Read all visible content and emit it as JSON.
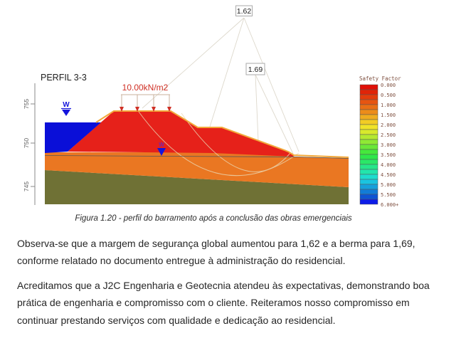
{
  "figure": {
    "profile_label": "PERFIL 3-3",
    "surcharge_label": "10.00kN/m2",
    "water_symbol": "W",
    "safety_factors": {
      "global": "1.62",
      "berm": "1.69"
    },
    "y_axis_ticks": [
      "755",
      "750",
      "745"
    ],
    "layer_colors": {
      "water": "#0a0fd8",
      "embankment": "#e6211a",
      "fill_layer": "#ea7722",
      "foundation": "#6f7135",
      "surface_outline": "#f2a93b"
    },
    "legend": {
      "title": "Safety Factor",
      "ticks": [
        "0.000",
        "0.500",
        "1.000",
        "1.500",
        "2.000",
        "2.500",
        "3.000",
        "3.500",
        "4.000",
        "4.500",
        "5.000",
        "5.500",
        "6.000+"
      ],
      "cell_colors": [
        "#e01008",
        "#e02408",
        "#e33c0c",
        "#e65511",
        "#e96f15",
        "#ec8c1a",
        "#efac1f",
        "#f2cc24",
        "#f0e428",
        "#d8e92c",
        "#b4e930",
        "#8fe934",
        "#6ae838",
        "#45e83c",
        "#2ee74a",
        "#2ae768",
        "#26e68a",
        "#22e5ac",
        "#1edcce",
        "#1ac4e0",
        "#16a0dc",
        "#127cd8",
        "#0e54d4",
        "#0c1ce8"
      ]
    }
  },
  "caption": "Figura 1.20 - perfil do barramento após a conclusão das obras emergenciais",
  "paragraphs": [
    "Observa-se que a margem de segurança global aumentou para 1,62 e a berma para 1,69, conforme relatado no documento entregue à administração do residencial.",
    "Acreditamos que a J2C Engenharia e Geotecnia atendeu às expectativas, demonstrando boa prática de engenharia e compromisso com o cliente. Reiteramos nosso compromisso em continuar prestando serviços com qualidade e dedicação ao residencial."
  ]
}
